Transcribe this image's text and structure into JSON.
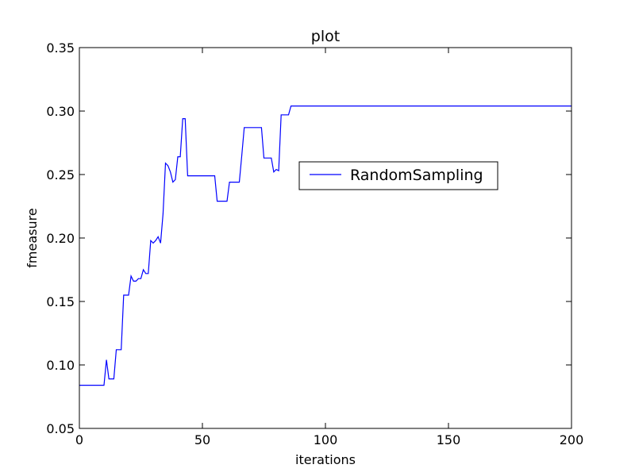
{
  "chart_data": {
    "type": "line",
    "title": "plot",
    "xlabel": "iterations",
    "ylabel": "fmeasure",
    "xlim": [
      0,
      200
    ],
    "ylim": [
      0.05,
      0.35
    ],
    "xticks": [
      0,
      50,
      100,
      150,
      200
    ],
    "xtick_labels": [
      "0",
      "50",
      "100",
      "150",
      "200"
    ],
    "yticks": [
      0.05,
      0.1,
      0.15,
      0.2,
      0.25,
      0.3,
      0.35
    ],
    "ytick_labels": [
      "0.05",
      "0.10",
      "0.15",
      "0.20",
      "0.25",
      "0.30",
      "0.35"
    ],
    "grid": false,
    "legend_position": "center-right",
    "series": [
      {
        "name": "RandomSampling",
        "color": "#0000ff",
        "x": [
          0,
          10,
          11,
          12,
          13,
          14,
          15,
          16,
          17,
          18,
          19,
          20,
          21,
          22,
          23,
          24,
          25,
          26,
          27,
          28,
          29,
          30,
          31,
          32,
          33,
          34,
          35,
          36,
          37,
          38,
          39,
          40,
          41,
          42,
          43,
          44,
          45,
          50,
          55,
          56,
          57,
          60,
          61,
          62,
          65,
          66,
          67,
          70,
          74,
          75,
          76,
          78,
          79,
          80,
          81,
          82,
          83,
          85,
          86,
          87,
          90,
          100,
          150,
          200
        ],
        "y": [
          0.084,
          0.084,
          0.104,
          0.089,
          0.089,
          0.089,
          0.112,
          0.112,
          0.112,
          0.155,
          0.155,
          0.155,
          0.17,
          0.166,
          0.166,
          0.168,
          0.168,
          0.175,
          0.172,
          0.172,
          0.198,
          0.196,
          0.198,
          0.201,
          0.196,
          0.219,
          0.259,
          0.257,
          0.252,
          0.244,
          0.246,
          0.264,
          0.264,
          0.294,
          0.294,
          0.249,
          0.249,
          0.249,
          0.249,
          0.229,
          0.229,
          0.229,
          0.244,
          0.244,
          0.244,
          0.265,
          0.287,
          0.287,
          0.287,
          0.263,
          0.263,
          0.263,
          0.252,
          0.254,
          0.253,
          0.297,
          0.297,
          0.297,
          0.304,
          0.304,
          0.304,
          0.304,
          0.304,
          0.304
        ]
      }
    ]
  }
}
